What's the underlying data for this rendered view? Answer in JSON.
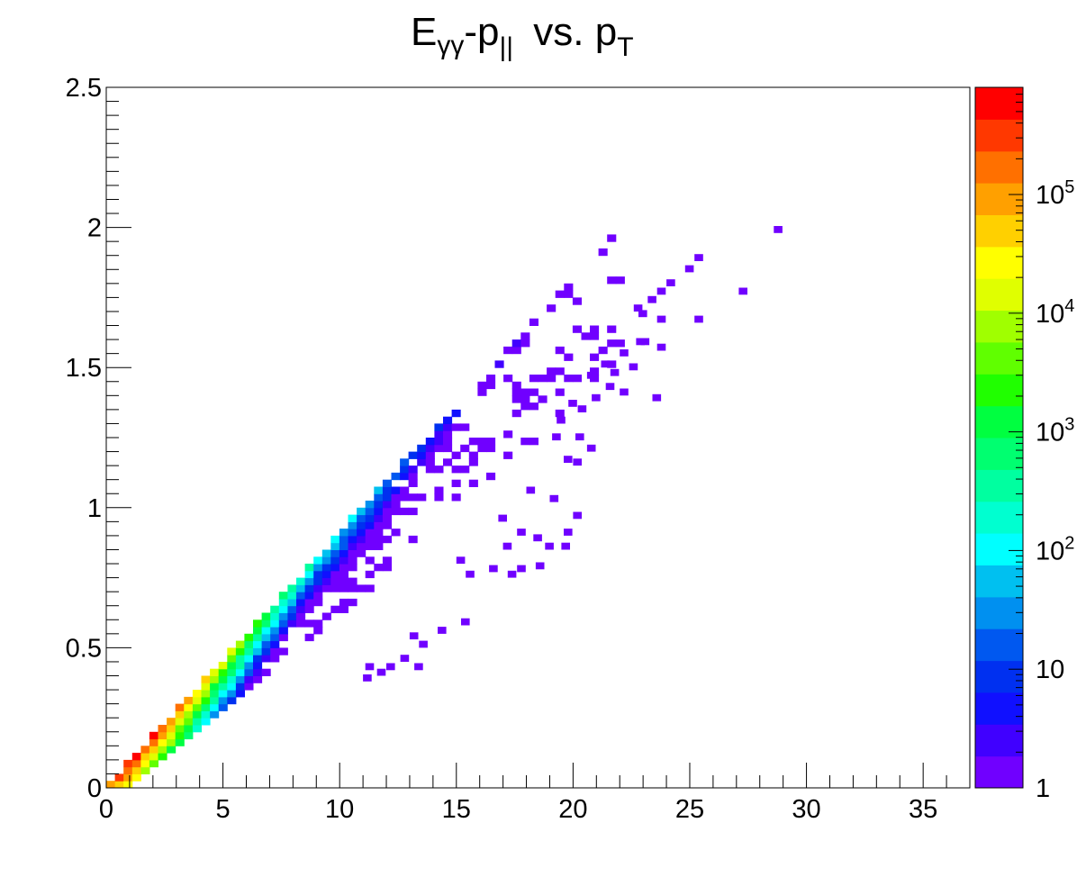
{
  "chart_data": {
    "type": "heatmap",
    "title": {
      "main": "E",
      "main_sub": "γγ",
      "dash_p": "-p",
      "par_sub": "||",
      "vs": " vs. p",
      "t_sub": "T"
    },
    "xlabel": "",
    "ylabel": "",
    "xlim": [
      0,
      37
    ],
    "ylim": [
      0,
      2.5
    ],
    "x_ticks": [
      {
        "v": 0,
        "label": "0"
      },
      {
        "v": 5,
        "label": "5"
      },
      {
        "v": 10,
        "label": "10"
      },
      {
        "v": 15,
        "label": "15"
      },
      {
        "v": 20,
        "label": "20"
      },
      {
        "v": 25,
        "label": "25"
      },
      {
        "v": 30,
        "label": "30"
      },
      {
        "v": 35,
        "label": "35"
      }
    ],
    "y_ticks": [
      {
        "v": 0,
        "label": "0"
      },
      {
        "v": 0.5,
        "label": "0.5"
      },
      {
        "v": 1,
        "label": "1"
      },
      {
        "v": 1.5,
        "label": "1.5"
      },
      {
        "v": 2,
        "label": "2"
      },
      {
        "v": 2.5,
        "label": "2.5"
      }
    ],
    "bin_width_x": 0.37,
    "bin_width_y": 0.025,
    "z_scale": "log",
    "zlim": [
      1,
      800000
    ],
    "z_ticks": [
      {
        "v": 1,
        "label": "1"
      },
      {
        "v": 10,
        "label": "10"
      },
      {
        "v": 100,
        "label": "10",
        "exp": "2"
      },
      {
        "v": 1000,
        "label": "10",
        "exp": "3"
      },
      {
        "v": 10000,
        "label": "10",
        "exp": "4"
      },
      {
        "v": 100000,
        "label": "10",
        "exp": "5"
      }
    ],
    "grid": false,
    "palette": [
      "#7000ff",
      "#4000ff",
      "#1010ff",
      "#0030f0",
      "#0058f0",
      "#0090f0",
      "#00c0f0",
      "#00ffff",
      "#00ffd0",
      "#00ffa0",
      "#00ff70",
      "#00ff40",
      "#20ff00",
      "#60ff00",
      "#a0ff00",
      "#e0ff00",
      "#ffff00",
      "#ffd000",
      "#ffa000",
      "#ff7000",
      "#ff3800",
      "#ff0000"
    ],
    "band": {
      "description_free_params": true,
      "slope_x_to_y": 0.082,
      "points_xy_z": [
        [
          0.3,
          0.01,
          700000
        ],
        [
          1.0,
          0.01,
          700000
        ],
        [
          1.5,
          0.05,
          500000
        ],
        [
          2.0,
          0.1,
          500000
        ],
        [
          3.0,
          0.2,
          200000
        ],
        [
          4.0,
          0.3,
          60000
        ],
        [
          5.0,
          0.38,
          20000
        ],
        [
          6.0,
          0.46,
          5000
        ],
        [
          7.0,
          0.55,
          1500
        ],
        [
          8.0,
          0.63,
          500
        ],
        [
          9.0,
          0.72,
          200
        ],
        [
          10.0,
          0.8,
          100
        ],
        [
          11.0,
          0.88,
          60
        ],
        [
          12.0,
          0.96,
          30
        ],
        [
          13.0,
          1.04,
          15
        ],
        [
          14.0,
          1.12,
          8
        ],
        [
          15.0,
          1.2,
          5
        ],
        [
          16.0,
          1.26,
          3
        ],
        [
          18.0,
          1.4,
          2
        ],
        [
          20.0,
          1.55,
          1
        ],
        [
          22.0,
          1.68,
          1
        ],
        [
          24.0,
          1.8,
          1
        ],
        [
          28.6,
          1.98,
          1
        ]
      ]
    }
  }
}
